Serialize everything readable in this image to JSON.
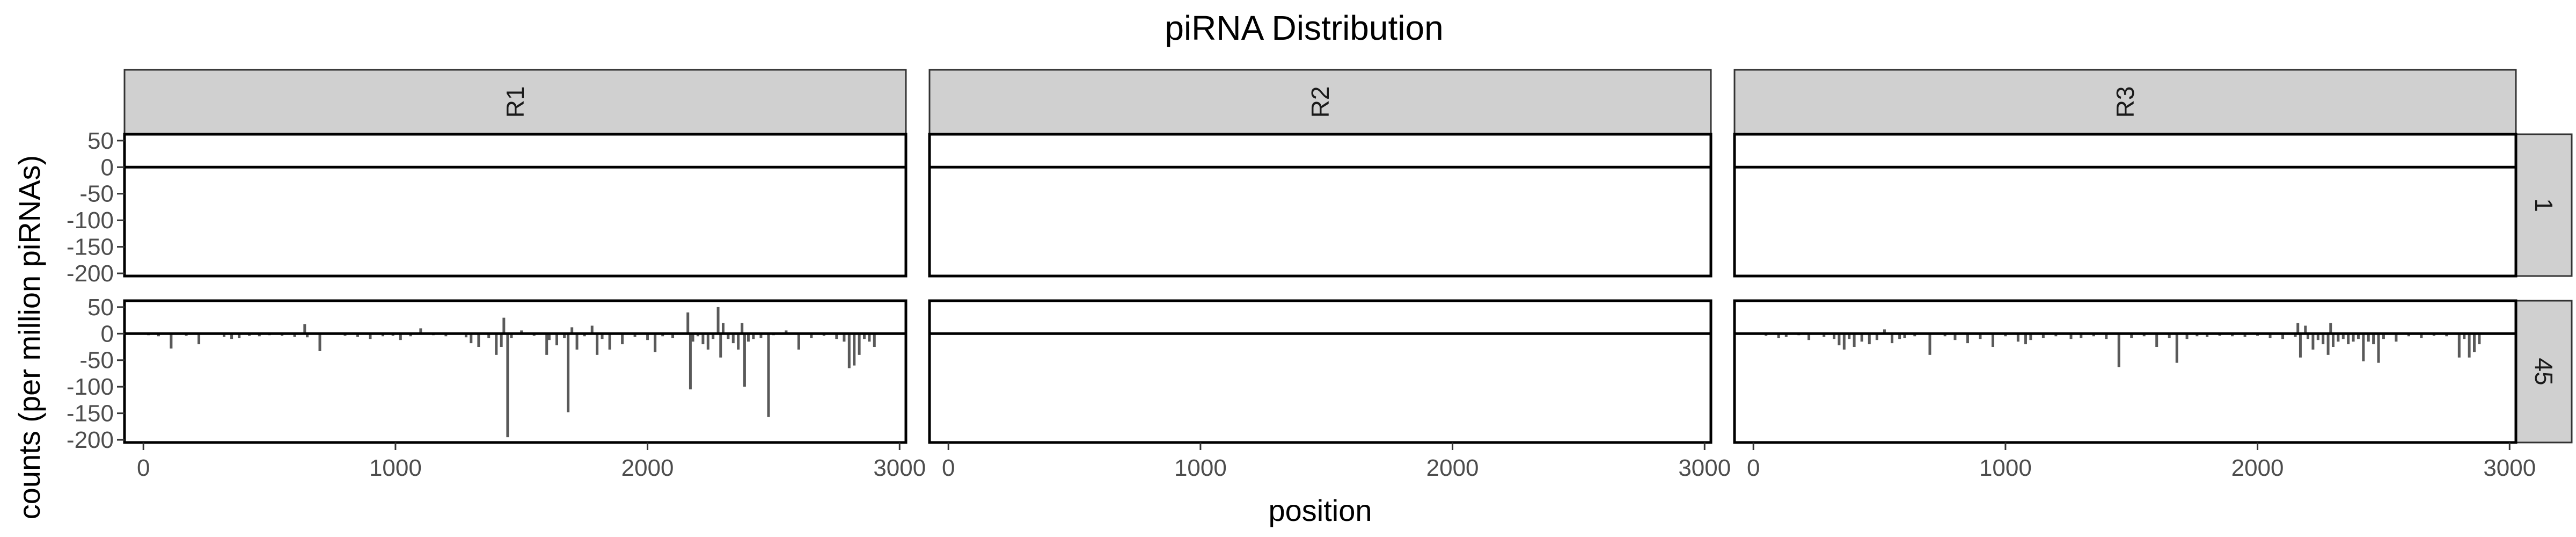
{
  "chart_data": {
    "type": "bar",
    "title": "piRNA Distribution",
    "xlabel": "position",
    "ylabel": "counts (per million piRNAs)",
    "xlim": [
      -75,
      3025
    ],
    "ylim": [
      -205,
      62
    ],
    "x_ticks": [
      0,
      1000,
      2000,
      3000
    ],
    "x_tick_labels": [
      "0",
      "1000",
      "2000",
      "3000"
    ],
    "y_ticks": [
      50,
      0,
      -50,
      -100,
      -150,
      -200
    ],
    "y_tick_labels": [
      "50",
      "0",
      "-50",
      "-100",
      "-150",
      "-200"
    ],
    "columns": [
      "R1",
      "R2",
      "R3"
    ],
    "rows": [
      "1",
      "45"
    ],
    "grid": false,
    "bar_color": "#595959",
    "panels": [
      {
        "column": "R1",
        "row": "1",
        "points": []
      },
      {
        "column": "R2",
        "row": "1",
        "points": []
      },
      {
        "column": "R3",
        "row": "1",
        "points": []
      },
      {
        "column": "R1",
        "row": "45",
        "points": [
          [
            20,
            -3
          ],
          [
            60,
            -5
          ],
          [
            110,
            -28
          ],
          [
            170,
            -4
          ],
          [
            220,
            -20
          ],
          [
            320,
            -6
          ],
          [
            350,
            -10
          ],
          [
            380,
            -8
          ],
          [
            420,
            -4
          ],
          [
            460,
            -5
          ],
          [
            500,
            -3
          ],
          [
            550,
            -4
          ],
          [
            600,
            -6
          ],
          [
            640,
            18
          ],
          [
            650,
            -7
          ],
          [
            700,
            -33
          ],
          [
            800,
            -4
          ],
          [
            850,
            -6
          ],
          [
            900,
            -10
          ],
          [
            950,
            -5
          ],
          [
            990,
            -4
          ],
          [
            1020,
            -12
          ],
          [
            1060,
            -5
          ],
          [
            1100,
            10
          ],
          [
            1150,
            -3
          ],
          [
            1200,
            -5
          ],
          [
            1280,
            -7
          ],
          [
            1300,
            -18
          ],
          [
            1330,
            -25
          ],
          [
            1370,
            -8
          ],
          [
            1400,
            -40
          ],
          [
            1420,
            -25
          ],
          [
            1430,
            30
          ],
          [
            1445,
            -195
          ],
          [
            1460,
            -8
          ],
          [
            1500,
            6
          ],
          [
            1550,
            -4
          ],
          [
            1600,
            -40
          ],
          [
            1610,
            -12
          ],
          [
            1640,
            -22
          ],
          [
            1670,
            -8
          ],
          [
            1685,
            -148
          ],
          [
            1700,
            12
          ],
          [
            1720,
            -30
          ],
          [
            1750,
            -5
          ],
          [
            1780,
            15
          ],
          [
            1800,
            -40
          ],
          [
            1820,
            -10
          ],
          [
            1850,
            -30
          ],
          [
            1900,
            -20
          ],
          [
            1950,
            -6
          ],
          [
            2000,
            -12
          ],
          [
            2030,
            -35
          ],
          [
            2060,
            -5
          ],
          [
            2100,
            -8
          ],
          [
            2160,
            40
          ],
          [
            2170,
            -105
          ],
          [
            2180,
            -15
          ],
          [
            2200,
            -5
          ],
          [
            2220,
            -20
          ],
          [
            2240,
            -30
          ],
          [
            2260,
            -10
          ],
          [
            2280,
            50
          ],
          [
            2290,
            -45
          ],
          [
            2300,
            20
          ],
          [
            2320,
            -10
          ],
          [
            2340,
            -18
          ],
          [
            2360,
            -30
          ],
          [
            2375,
            20
          ],
          [
            2385,
            -100
          ],
          [
            2400,
            -15
          ],
          [
            2420,
            -10
          ],
          [
            2450,
            -8
          ],
          [
            2480,
            -157
          ],
          [
            2500,
            -3
          ],
          [
            2550,
            6
          ],
          [
            2600,
            -30
          ],
          [
            2650,
            -8
          ],
          [
            2700,
            -4
          ],
          [
            2750,
            -10
          ],
          [
            2780,
            -15
          ],
          [
            2800,
            -65
          ],
          [
            2820,
            -60
          ],
          [
            2840,
            -40
          ],
          [
            2860,
            -10
          ],
          [
            2880,
            -15
          ],
          [
            2900,
            -25
          ]
        ]
      },
      {
        "column": "R2",
        "row": "45",
        "points": []
      },
      {
        "column": "R3",
        "row": "45",
        "points": [
          [
            50,
            -4
          ],
          [
            100,
            -8
          ],
          [
            130,
            -6
          ],
          [
            180,
            -3
          ],
          [
            220,
            -12
          ],
          [
            280,
            -6
          ],
          [
            320,
            -10
          ],
          [
            340,
            -22
          ],
          [
            360,
            -30
          ],
          [
            380,
            -10
          ],
          [
            400,
            -25
          ],
          [
            430,
            -15
          ],
          [
            460,
            -20
          ],
          [
            490,
            -12
          ],
          [
            520,
            8
          ],
          [
            550,
            -18
          ],
          [
            580,
            -10
          ],
          [
            600,
            -8
          ],
          [
            640,
            -5
          ],
          [
            700,
            -40
          ],
          [
            760,
            -5
          ],
          [
            800,
            -12
          ],
          [
            850,
            -18
          ],
          [
            900,
            -10
          ],
          [
            950,
            -25
          ],
          [
            1000,
            -5
          ],
          [
            1050,
            -15
          ],
          [
            1080,
            -20
          ],
          [
            1100,
            -12
          ],
          [
            1150,
            -8
          ],
          [
            1200,
            -5
          ],
          [
            1260,
            -10
          ],
          [
            1300,
            -8
          ],
          [
            1350,
            -5
          ],
          [
            1400,
            -10
          ],
          [
            1450,
            -63
          ],
          [
            1500,
            -8
          ],
          [
            1550,
            -5
          ],
          [
            1600,
            -25
          ],
          [
            1650,
            -8
          ],
          [
            1680,
            -55
          ],
          [
            1720,
            -10
          ],
          [
            1760,
            -5
          ],
          [
            1800,
            -6
          ],
          [
            1850,
            -4
          ],
          [
            1900,
            -5
          ],
          [
            1950,
            -6
          ],
          [
            2000,
            -4
          ],
          [
            2050,
            -8
          ],
          [
            2100,
            -10
          ],
          [
            2150,
            -6
          ],
          [
            2160,
            20
          ],
          [
            2170,
            -45
          ],
          [
            2190,
            15
          ],
          [
            2200,
            -10
          ],
          [
            2220,
            -30
          ],
          [
            2240,
            -12
          ],
          [
            2260,
            -20
          ],
          [
            2280,
            -40
          ],
          [
            2290,
            20
          ],
          [
            2300,
            -25
          ],
          [
            2320,
            -15
          ],
          [
            2340,
            -10
          ],
          [
            2360,
            -20
          ],
          [
            2380,
            -15
          ],
          [
            2400,
            -10
          ],
          [
            2420,
            -52
          ],
          [
            2440,
            -15
          ],
          [
            2460,
            -20
          ],
          [
            2480,
            -55
          ],
          [
            2500,
            -10
          ],
          [
            2550,
            -15
          ],
          [
            2600,
            -5
          ],
          [
            2650,
            -8
          ],
          [
            2700,
            -4
          ],
          [
            2750,
            -5
          ],
          [
            2800,
            -45
          ],
          [
            2820,
            -10
          ],
          [
            2840,
            -45
          ],
          [
            2860,
            -35
          ],
          [
            2880,
            -20
          ]
        ]
      }
    ]
  }
}
